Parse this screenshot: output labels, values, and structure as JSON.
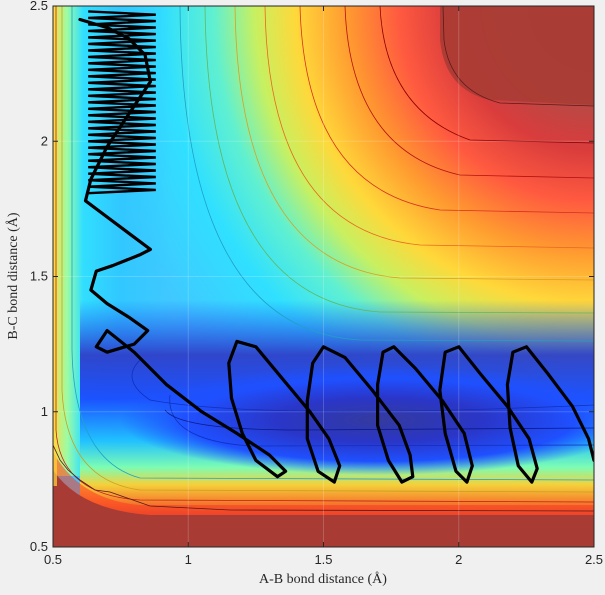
{
  "chart_data": {
    "type": "contour",
    "title": "",
    "xlabel": "A-B bond distance (Å)",
    "ylabel": "B-C bond distance (Å)",
    "xlim": [
      0.5,
      2.5
    ],
    "ylim": [
      0.5,
      2.5
    ],
    "xticks": [
      "0.5",
      "1",
      "1.5",
      "2",
      "2.5"
    ],
    "yticks": [
      "0.5",
      "1",
      "1.5",
      "2",
      "2.5"
    ],
    "xtick_values": [
      0.5,
      1,
      1.5,
      2,
      2.5
    ],
    "ytick_values": [
      0.5,
      1,
      1.5,
      2,
      2.5
    ],
    "grid": true,
    "colormap": "jet",
    "surface": "potential energy surface with two perpendicular valleys (reactant and product channels)",
    "trajectory_color": "#000000",
    "trajectory_path": [
      [
        0.6,
        2.45
      ],
      [
        0.7,
        2.42
      ],
      [
        0.78,
        2.38
      ],
      [
        0.84,
        2.32
      ],
      [
        0.86,
        2.22
      ],
      [
        0.78,
        2.1
      ],
      [
        0.7,
        1.98
      ],
      [
        0.64,
        1.86
      ],
      [
        0.62,
        1.78
      ],
      [
        0.7,
        1.72
      ],
      [
        0.78,
        1.66
      ],
      [
        0.86,
        1.6
      ],
      [
        0.82,
        1.58
      ],
      [
        0.72,
        1.54
      ],
      [
        0.66,
        1.52
      ],
      [
        0.64,
        1.45
      ],
      [
        0.7,
        1.4
      ],
      [
        0.78,
        1.35
      ],
      [
        0.85,
        1.3
      ],
      [
        0.8,
        1.25
      ],
      [
        0.7,
        1.22
      ],
      [
        0.66,
        1.24
      ],
      [
        0.7,
        1.3
      ],
      [
        0.8,
        1.22
      ],
      [
        0.92,
        1.1
      ],
      [
        1.05,
        1.0
      ],
      [
        1.18,
        0.92
      ],
      [
        1.3,
        0.84
      ],
      [
        1.36,
        0.78
      ],
      [
        1.33,
        0.76
      ],
      [
        1.25,
        0.82
      ],
      [
        1.2,
        0.92
      ],
      [
        1.16,
        1.05
      ],
      [
        1.15,
        1.18
      ],
      [
        1.18,
        1.26
      ],
      [
        1.25,
        1.24
      ],
      [
        1.35,
        1.12
      ],
      [
        1.45,
        1.0
      ],
      [
        1.52,
        0.9
      ],
      [
        1.56,
        0.8
      ],
      [
        1.54,
        0.74
      ],
      [
        1.48,
        0.78
      ],
      [
        1.44,
        0.9
      ],
      [
        1.44,
        1.04
      ],
      [
        1.46,
        1.18
      ],
      [
        1.5,
        1.24
      ],
      [
        1.58,
        1.2
      ],
      [
        1.68,
        1.08
      ],
      [
        1.78,
        0.95
      ],
      [
        1.82,
        0.84
      ],
      [
        1.83,
        0.76
      ],
      [
        1.79,
        0.74
      ],
      [
        1.74,
        0.82
      ],
      [
        1.7,
        0.95
      ],
      [
        1.7,
        1.1
      ],
      [
        1.72,
        1.22
      ],
      [
        1.76,
        1.24
      ],
      [
        1.84,
        1.16
      ],
      [
        1.94,
        1.04
      ],
      [
        2.02,
        0.92
      ],
      [
        2.05,
        0.8
      ],
      [
        2.03,
        0.74
      ],
      [
        1.99,
        0.78
      ],
      [
        1.95,
        0.92
      ],
      [
        1.93,
        1.08
      ],
      [
        1.95,
        1.22
      ],
      [
        2.0,
        1.24
      ],
      [
        2.08,
        1.14
      ],
      [
        2.18,
        1.02
      ],
      [
        2.26,
        0.9
      ],
      [
        2.29,
        0.79
      ],
      [
        2.27,
        0.74
      ],
      [
        2.22,
        0.8
      ],
      [
        2.19,
        0.94
      ],
      [
        2.18,
        1.1
      ],
      [
        2.2,
        1.22
      ],
      [
        2.25,
        1.24
      ],
      [
        2.33,
        1.14
      ],
      [
        2.42,
        1.02
      ],
      [
        2.48,
        0.9
      ],
      [
        2.5,
        0.82
      ]
    ]
  }
}
